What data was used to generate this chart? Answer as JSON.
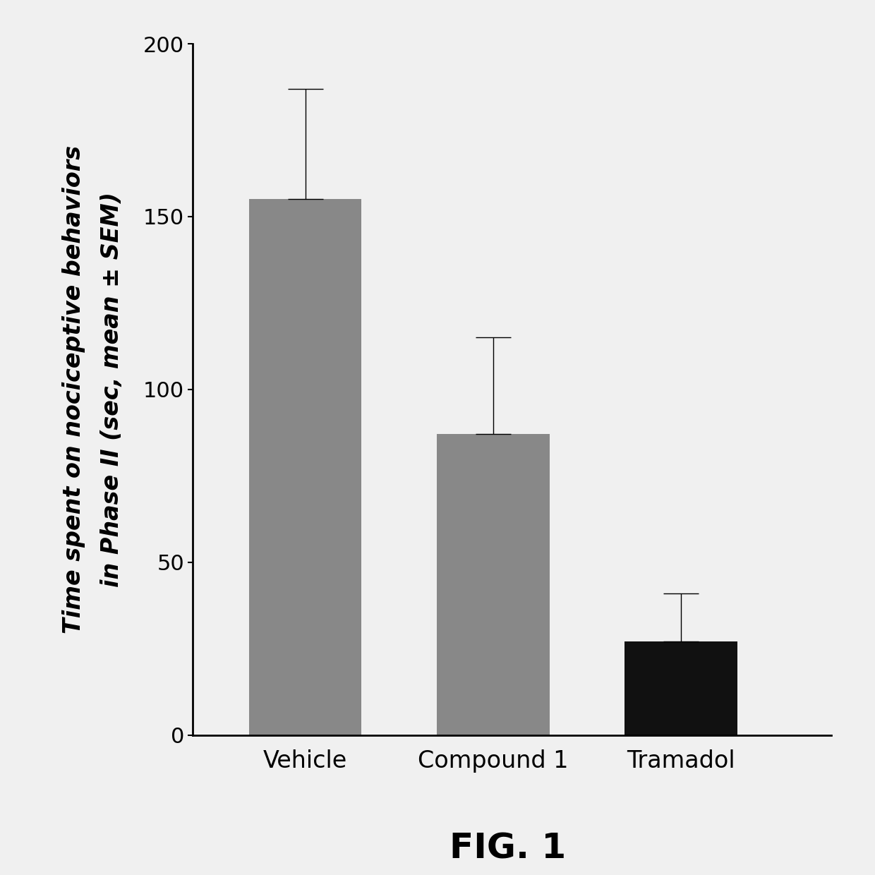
{
  "categories": [
    "Vehicle",
    "Compound 1",
    "Tramadol"
  ],
  "values": [
    155,
    87,
    27
  ],
  "errors_upper": [
    32,
    28,
    14
  ],
  "errors_lower": [
    0,
    0,
    0
  ],
  "bar_colors": [
    "#888888",
    "#888888",
    "#111111"
  ],
  "bar_edge_colors": [
    "#888888",
    "#888888",
    "#111111"
  ],
  "ylabel_line1": "Time spent on nociceptive behaviors",
  "ylabel_line2": "in Phase II (sec, mean ± SEM)",
  "ylim": [
    0,
    200
  ],
  "yticks": [
    0,
    50,
    100,
    150,
    200
  ],
  "figure_label": "FIG. 1",
  "background_color": "#f0f0f0",
  "bar_width": 0.6,
  "ylabel_fontsize": 24,
  "tick_fontsize": 22,
  "xlabel_fontsize": 24,
  "fig_label_fontsize": 36,
  "bar_positions": [
    1,
    2,
    3
  ]
}
